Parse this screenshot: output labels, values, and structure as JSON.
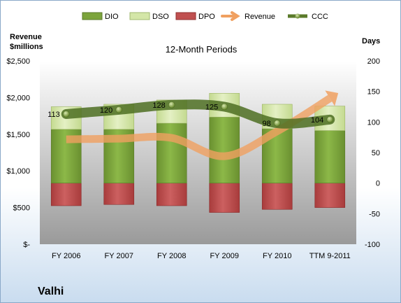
{
  "chart_data": {
    "type": "bar",
    "title": "12-Month Periods",
    "company": "Valhi",
    "categories": [
      "FY 2006",
      "FY 2007",
      "FY 2008",
      "FY 2009",
      "FY 2010",
      "TTM 9-2011"
    ],
    "left_axis": {
      "title_line1": "Revenue",
      "title_line2": "$millions",
      "ylim": [
        0,
        2500
      ],
      "ticks": [
        0,
        500,
        1000,
        1500,
        2000,
        2500
      ],
      "tick_labels": [
        "$-",
        "$500",
        "$1,000",
        "$1,500",
        "$2,000",
        "$2,500"
      ]
    },
    "right_axis": {
      "title": "Days",
      "ylim": [
        -100,
        200
      ],
      "ticks": [
        -100,
        -50,
        0,
        50,
        100,
        150,
        200
      ],
      "tick_labels": [
        "-100",
        "-50",
        "0",
        "50",
        "100",
        "150",
        "200"
      ]
    },
    "series": [
      {
        "name": "DIO",
        "axis": "right",
        "color": "#7ca43c",
        "values": [
          88,
          88,
          98,
          108,
          89,
          86
        ]
      },
      {
        "name": "DSO",
        "axis": "right",
        "color": "#d4e6a8",
        "values": [
          37,
          41,
          38,
          39,
          40,
          40
        ]
      },
      {
        "name": "DPO",
        "axis": "right",
        "color": "#c05050",
        "values": [
          -37,
          -35,
          -37,
          -48,
          -43,
          -40
        ]
      },
      {
        "name": "Revenue",
        "axis": "left",
        "color": "#f0a060",
        "values": [
          1430,
          1440,
          1450,
          1200,
          1540,
          1990
        ]
      },
      {
        "name": "CCC",
        "axis": "right",
        "color": "#5a7a2a",
        "values": [
          113,
          120,
          128,
          125,
          98,
          104
        ]
      }
    ],
    "ccc_labels": [
      "113",
      "120",
      "128",
      "125",
      "98",
      "104"
    ],
    "legend_position": "top",
    "grid": false
  }
}
